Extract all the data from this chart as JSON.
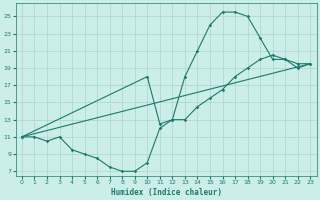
{
  "xlabel": "Humidex (Indice chaleur)",
  "bg_color": "#cceee8",
  "line_color": "#1a7a6e",
  "grid_color": "#aad4ce",
  "xlim": [
    -0.5,
    23.5
  ],
  "ylim": [
    6.5,
    26.5
  ],
  "xticks": [
    0,
    1,
    2,
    3,
    4,
    5,
    6,
    7,
    8,
    9,
    10,
    11,
    12,
    13,
    14,
    15,
    16,
    17,
    18,
    19,
    20,
    21,
    22,
    23
  ],
  "yticks": [
    7,
    9,
    11,
    13,
    15,
    17,
    19,
    21,
    23,
    25
  ],
  "line1_x": [
    0,
    1,
    2,
    3,
    4,
    5,
    6,
    7,
    8,
    9,
    10,
    11,
    12,
    13,
    14,
    15,
    16,
    17,
    18,
    19,
    20,
    21,
    22,
    23
  ],
  "line1_y": [
    11,
    11,
    10.5,
    11,
    9.5,
    9,
    8.5,
    7.5,
    7,
    7,
    8,
    12,
    13,
    18,
    21,
    24,
    25.5,
    25.5,
    25,
    22.5,
    20,
    20,
    19,
    19.5
  ],
  "line2_x": [
    0,
    10,
    11,
    12,
    13,
    14,
    15,
    16,
    17,
    18,
    19,
    20,
    21,
    22,
    23
  ],
  "line2_y": [
    11,
    18,
    12.5,
    13,
    13,
    14.5,
    15.5,
    16.5,
    18,
    19,
    20,
    20.5,
    20,
    19.5,
    19.5
  ],
  "line3_x": [
    0,
    23
  ],
  "line3_y": [
    11,
    19.5
  ]
}
